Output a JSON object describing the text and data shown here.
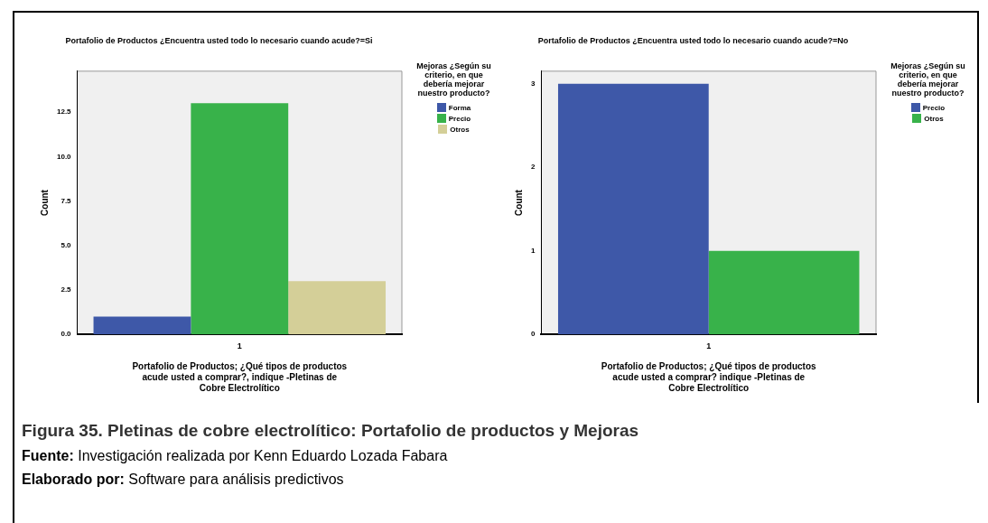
{
  "chart_data": [
    {
      "type": "bar",
      "title": "Portafolio de Productos ¿Encuentra usted todo lo necesario cuando acude?=Si",
      "xlabel": "Portafolio de Productos; ¿Qué tipos de productos acude usted a comprar?, indique -Pletinas de Cobre Electrolítico",
      "ylabel": "Count",
      "legend_title": "Mejoras ¿Según su criterio, en que debería mejorar nuestro producto?",
      "legend": "right",
      "grid": false,
      "categories": [
        "1"
      ],
      "ylim": [
        0,
        14.8
      ],
      "yticks": [
        {
          "value": 0,
          "label": "0.0"
        },
        {
          "value": 2.5,
          "label": "2.5"
        },
        {
          "value": 5,
          "label": "5.0"
        },
        {
          "value": 7.5,
          "label": "7.5"
        },
        {
          "value": 10,
          "label": "10.0"
        },
        {
          "value": 12.5,
          "label": "12.5"
        }
      ],
      "series": [
        {
          "name": "Forma",
          "color": "#3e58a8",
          "values": [
            1
          ]
        },
        {
          "name": "Precio",
          "color": "#38b24a",
          "values": [
            13
          ]
        },
        {
          "name": "Otros",
          "color": "#d4cf98",
          "values": [
            3
          ]
        }
      ],
      "annotations": [
        "Figura 35.  Pletinas de cobre electrolítico: Portafolio de productos y Mejoras",
        "Fuente: Investigación realizada por Kenn Eduardo Lozada Fabara",
        "Elaborado por: Software para análisis predictivos"
      ]
    },
    {
      "type": "bar",
      "title": "Portafolio de Productos ¿Encuentra usted todo lo necesario cuando acude?=No",
      "xlabel": "Portafolio de Productos; ¿Qué tipos de productos acude usted a comprar? indique -Pletinas de Cobre Electrolítico",
      "ylabel": "Count",
      "legend_title": "Mejoras ¿Según su criterio, en que debería mejorar nuestro producto?",
      "legend": "right",
      "grid": false,
      "categories": [
        "1"
      ],
      "ylim": [
        0,
        3.15
      ],
      "yticks": [
        0,
        1,
        2,
        3
      ],
      "series": [
        {
          "name": "Precio",
          "color": "#3e58a8",
          "values": [
            3
          ]
        },
        {
          "name": "Otros",
          "color": "#38b24a",
          "values": [
            1
          ]
        }
      ]
    }
  ]
}
